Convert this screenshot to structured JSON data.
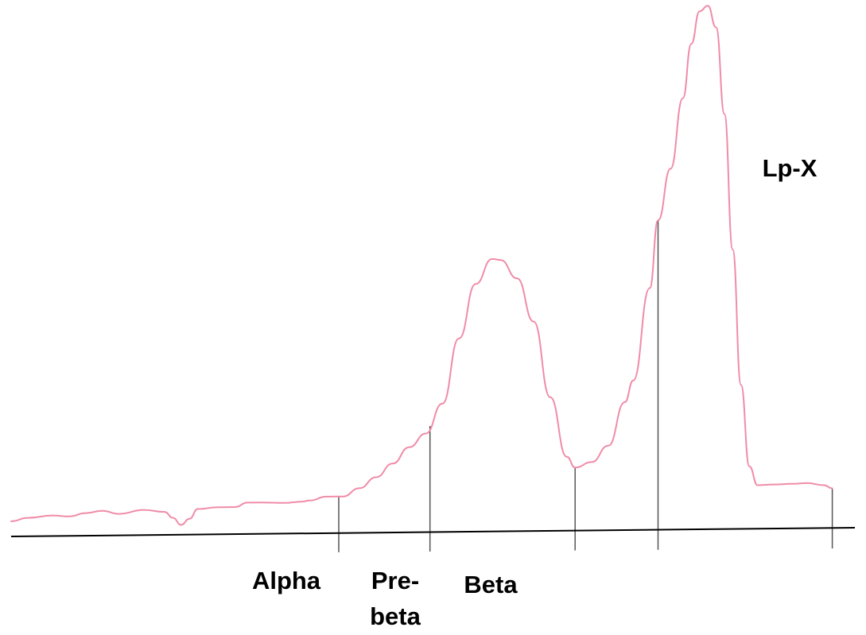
{
  "chart_data": {
    "type": "line",
    "title": "",
    "xlabel": "",
    "ylabel": "",
    "x_range": [
      0,
      100
    ],
    "y_range": [
      0,
      100
    ],
    "grid": false,
    "series": [
      {
        "points": [
          [
            0,
            0.9
          ],
          [
            2,
            1.5
          ],
          [
            5,
            1.9
          ],
          [
            7,
            1.7
          ],
          [
            9,
            2.3
          ],
          [
            11,
            2.7
          ],
          [
            13,
            2.1
          ],
          [
            16,
            2.8
          ],
          [
            18.5,
            2.4
          ],
          [
            19.5,
            1.3
          ],
          [
            20.5,
            0.0
          ],
          [
            21.5,
            1.1
          ],
          [
            22.5,
            2.9
          ],
          [
            25,
            3.2
          ],
          [
            27,
            3.2
          ],
          [
            28.5,
            4.0
          ],
          [
            30,
            4.0
          ],
          [
            33,
            3.9
          ],
          [
            35,
            4.1
          ],
          [
            36,
            4.3
          ],
          [
            38,
            5.0
          ],
          [
            40,
            5.0
          ],
          [
            42,
            6.5
          ],
          [
            44,
            8.5
          ],
          [
            46,
            11.0
          ],
          [
            48,
            14.0
          ],
          [
            50,
            16.5
          ],
          [
            52,
            22.0
          ],
          [
            54,
            34.0
          ],
          [
            56,
            44.0
          ],
          [
            58,
            48.6
          ],
          [
            59,
            48.4
          ],
          [
            61,
            45.0
          ],
          [
            63,
            37.0
          ],
          [
            65,
            23.0
          ],
          [
            67,
            12.0
          ],
          [
            68,
            10.0
          ],
          [
            70,
            11.0
          ],
          [
            72,
            14.0
          ],
          [
            74,
            22.0
          ],
          [
            75,
            26.0
          ],
          [
            77,
            43.0
          ],
          [
            78,
            55.5
          ],
          [
            79.5,
            65.0
          ],
          [
            81,
            78.0
          ],
          [
            82,
            88.0
          ],
          [
            83,
            94.0
          ],
          [
            84,
            95.0
          ],
          [
            85,
            91.0
          ],
          [
            86,
            75.0
          ],
          [
            87,
            50.0
          ],
          [
            88,
            25.0
          ],
          [
            89,
            10.0
          ],
          [
            90,
            6.5
          ],
          [
            92,
            6.6
          ],
          [
            94,
            6.7
          ],
          [
            96,
            6.8
          ],
          [
            98,
            6.4
          ],
          [
            99,
            5.8
          ]
        ]
      }
    ],
    "fraction_boundaries_x": [
      39.5,
      50.5,
      68,
      78,
      99
    ],
    "fractions": [
      {
        "label": "Alpha",
        "x": 32.5
      },
      {
        "label": "Pre-",
        "label2": "beta",
        "x": 45.5
      },
      {
        "label": "Beta",
        "x": 55.5
      },
      {
        "label": "Lp-X",
        "x": 90.5
      }
    ],
    "colors": {
      "curve": "#f08ca8",
      "baseline": "#000000",
      "tick": "#555555",
      "text": "#000000"
    }
  }
}
